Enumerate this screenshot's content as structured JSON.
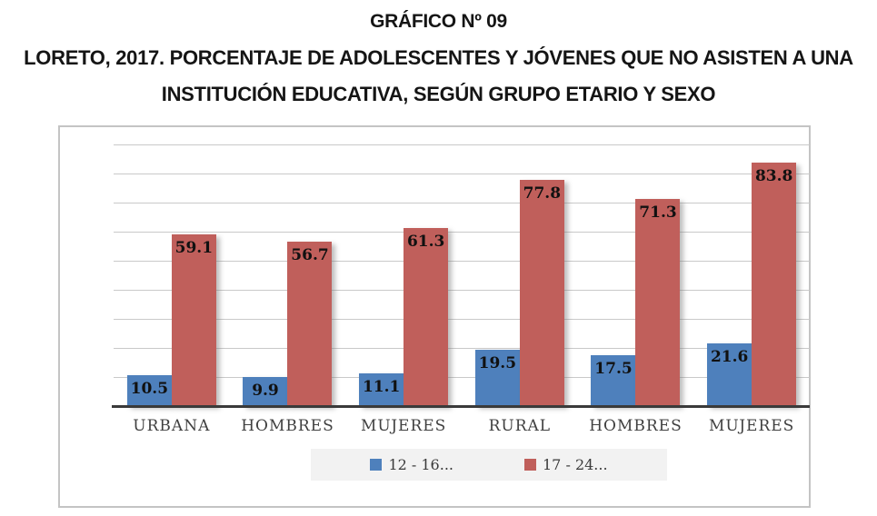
{
  "title": {
    "line1": "GRÁFICO Nº 09",
    "line2": "LORETO, 2017. PORCENTAJE DE ADOLESCENTES Y JÓVENES QUE NO ASISTEN A UNA",
    "line3": "INSTITUCIÓN EDUCATIVA, SEGÚN GRUPO ETARIO Y SEXO"
  },
  "chart_data": {
    "type": "bar",
    "categories": [
      "URBANA",
      "HOMBRES",
      "MUJERES",
      "RURAL",
      "HOMBRES",
      "MUJERES"
    ],
    "series": [
      {
        "name": "12 - 16...",
        "color": "#4e80bc",
        "values": [
          10.5,
          9.9,
          11.1,
          19.5,
          17.5,
          21.6
        ]
      },
      {
        "name": "17 - 24...",
        "color": "#c05f5b",
        "values": [
          59.1,
          56.7,
          61.3,
          77.8,
          71.3,
          83.8
        ]
      }
    ],
    "title": "GRÁFICO Nº 09 — LORETO, 2017. PORCENTAJE DE ADOLESCENTES Y JÓVENES QUE NO ASISTEN A UNA INSTITUCIÓN EDUCATIVA, SEGÚN GRUPO ETARIO Y SEXO",
    "xlabel": "",
    "ylabel": "",
    "ylim": [
      0,
      90
    ],
    "gridline_step": 10,
    "grid": true,
    "y_tick_labels_visible": false,
    "value_labels": true,
    "legend_position": "bottom-inside"
  },
  "colors": {
    "series_blue": "#4e80bc",
    "series_red": "#c05f5b",
    "gridline": "#c9c9c9",
    "axis_line": "#3a3a3a",
    "chart_border": "#c4c4c4",
    "legend_background": "#f2f2f2",
    "title_text": "#151515",
    "category_text": "#404040"
  }
}
